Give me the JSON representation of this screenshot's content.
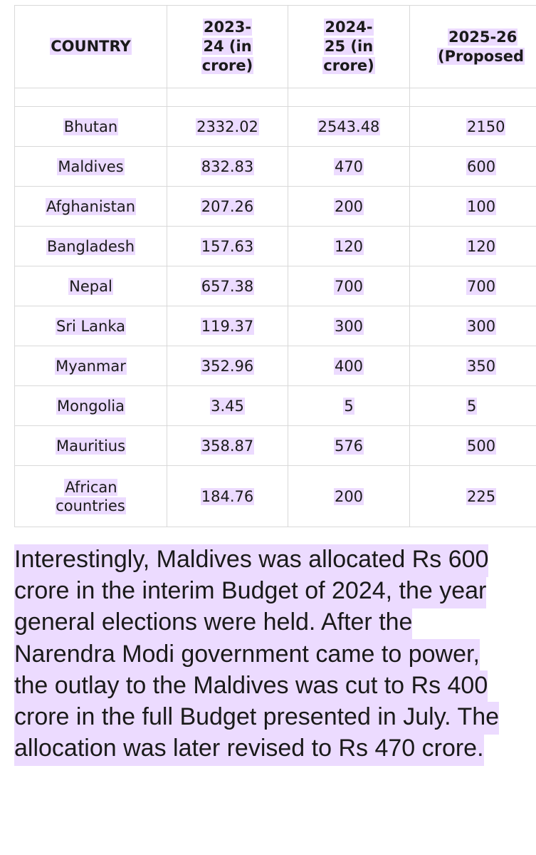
{
  "table": {
    "headers": [
      "COUNTRY",
      "2023-24 (in crore)",
      "2024-25 (in crore)",
      "2025-26 (Proposed"
    ],
    "header_lines": [
      [
        "COUNTRY"
      ],
      [
        "2023-",
        "24 (in",
        "crore)"
      ],
      [
        "2024-",
        "25 (in",
        "crore)"
      ],
      [
        "2025-26",
        "(Proposed"
      ]
    ],
    "rows": [
      [
        "Bhutan",
        "2332.02",
        "2543.48",
        "2150"
      ],
      [
        "Maldives",
        "832.83",
        "470",
        "600"
      ],
      [
        "Afghanistan",
        "207.26",
        "200",
        "100"
      ],
      [
        "Bangladesh",
        "157.63",
        "120",
        "120"
      ],
      [
        "Nepal",
        "657.38",
        "700",
        "700"
      ],
      [
        "Sri Lanka",
        "119.37",
        "300",
        "300"
      ],
      [
        "Myanmar",
        "352.96",
        "400",
        "350"
      ],
      [
        "Mongolia",
        "3.45",
        "5",
        "5"
      ],
      [
        "Mauritius",
        "358.87",
        "576",
        "500"
      ],
      [
        "African countries",
        "184.76",
        "200",
        "225"
      ]
    ]
  },
  "paragraph": "Interestingly, Maldives was allocated Rs 600 crore in the interim Budget of 2024, the year general elections were held. After the Narendra Modi government came to power, the outlay to the Maldives was cut to Rs 400 crore in the full Budget presented in July. The allocation was later revised to Rs 470 crore.",
  "colors": {
    "highlight": "#ecdbff",
    "border": "#d9d9d9",
    "text": "#1a1a1a"
  }
}
